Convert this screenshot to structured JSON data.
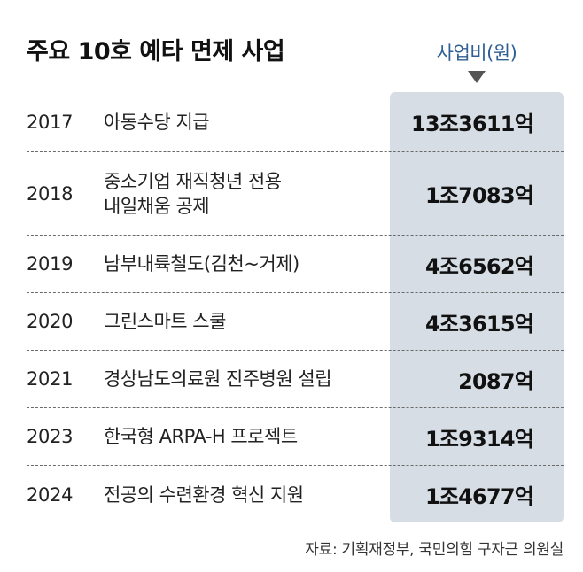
{
  "chart_data": {
    "type": "table",
    "title": "주요 10호 예타 면제 사업",
    "value_header": "사업비(원)",
    "rows": [
      {
        "year": "2017",
        "project": "아동수당 지급",
        "amount": "13조3611억",
        "value_eok": 133611
      },
      {
        "year": "2018",
        "project": "중소기업 재직청년 전용\n내일채움 공제",
        "amount": "1조7083억",
        "value_eok": 17083
      },
      {
        "year": "2019",
        "project": "남부내륙철도(김천~거제)",
        "amount": "4조6562억",
        "value_eok": 46562
      },
      {
        "year": "2020",
        "project": "그린스마트 스쿨",
        "amount": "4조3615억",
        "value_eok": 43615
      },
      {
        "year": "2021",
        "project": "경상남도의료원 진주병원 설립",
        "amount": "2087억",
        "value_eok": 2087
      },
      {
        "year": "2023",
        "project": "한국형 ARPA-H 프로젝트",
        "amount": "1조9314억",
        "value_eok": 19314
      },
      {
        "year": "2024",
        "project": "전공의 수련환경 혁신 지원",
        "amount": "1조4677억",
        "value_eok": 14677
      }
    ],
    "source": "자료: 기획재정부, 국민의힘 구자근 의원실",
    "colors": {
      "band": "#d6dde5",
      "header": "#2f5f93"
    }
  }
}
